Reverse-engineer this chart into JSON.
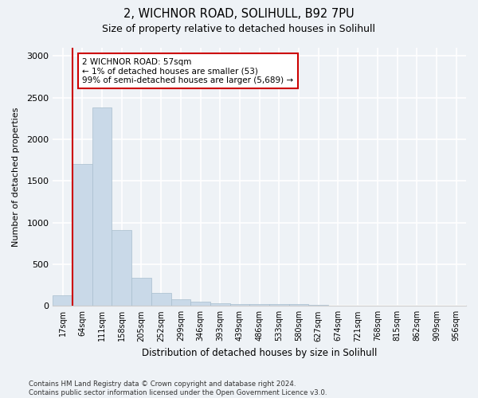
{
  "title_line1": "2, WICHNOR ROAD, SOLIHULL, B92 7PU",
  "title_line2": "Size of property relative to detached houses in Solihull",
  "xlabel": "Distribution of detached houses by size in Solihull",
  "ylabel": "Number of detached properties",
  "bar_color": "#c9d9e8",
  "bar_edge_color": "#a8bece",
  "annotation_box_color": "#cc0000",
  "annotation_text": "2 WICHNOR ROAD: 57sqm\n← 1% of detached houses are smaller (53)\n99% of semi-detached houses are larger (5,689) →",
  "categories": [
    "17sqm",
    "64sqm",
    "111sqm",
    "158sqm",
    "205sqm",
    "252sqm",
    "299sqm",
    "346sqm",
    "393sqm",
    "439sqm",
    "486sqm",
    "533sqm",
    "580sqm",
    "627sqm",
    "674sqm",
    "721sqm",
    "768sqm",
    "815sqm",
    "862sqm",
    "909sqm",
    "956sqm"
  ],
  "values": [
    130,
    1700,
    2380,
    910,
    340,
    155,
    80,
    50,
    35,
    25,
    20,
    20,
    20,
    15,
    0,
    0,
    0,
    0,
    0,
    0,
    0
  ],
  "ylim": [
    0,
    3100
  ],
  "yticks": [
    0,
    500,
    1000,
    1500,
    2000,
    2500,
    3000
  ],
  "highlight_bar_color": "#cc0000",
  "footer_text": "Contains HM Land Registry data © Crown copyright and database right 2024.\nContains public sector information licensed under the Open Government Licence v3.0.",
  "bg_color": "#eef2f6",
  "grid_color": "#ffffff",
  "spine_color": "#cccccc"
}
